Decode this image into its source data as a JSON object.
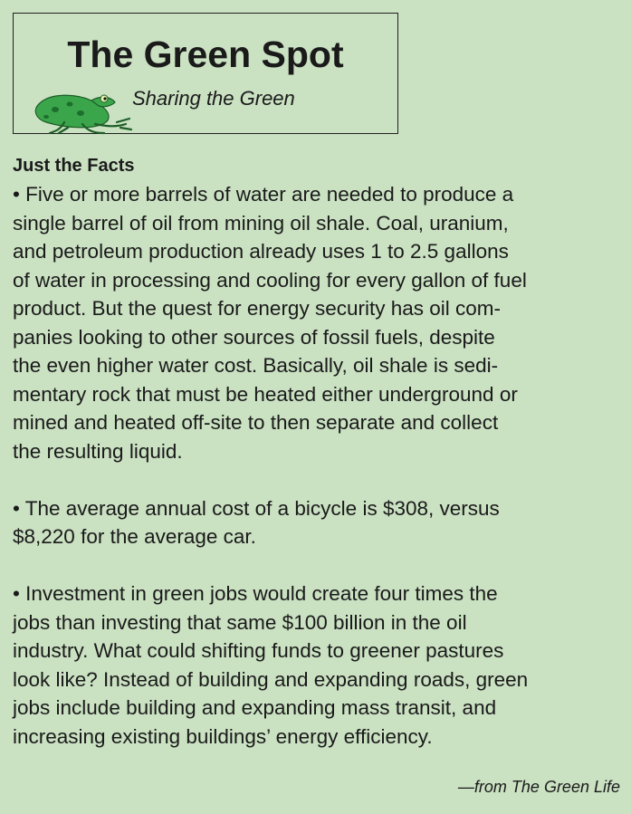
{
  "header": {
    "title": "The Green Spot",
    "subtitle": "Sharing the Green"
  },
  "section": {
    "heading": "Just the Facts",
    "paragraphs": [
      [
        "•  Five or more barrels of water are needed to produce a",
        "single barrel of oil from mining oil shale. Coal, uranium,",
        "and petroleum production already uses 1 to 2.5 gallons",
        "of water in processing and cooling for every gallon of fuel",
        "product. But the quest for energy security has oil com-",
        "panies looking to other sources of fossil fuels, despite",
        "the even higher water cost. Basically, oil shale is sedi-",
        "mentary rock that must be heated either underground or",
        "mined and heated off-site to then separate and collect",
        "the resulting liquid."
      ],
      [
        "• The average annual cost of a bicycle is $308, versus",
        "$8,220 for the average car."
      ],
      [
        "• Investment in green jobs would create four times the",
        "jobs than investing that same $100 billion in the oil",
        "industry. What could shifting funds to greener pastures",
        "look like? Instead of building and expanding roads, green",
        "jobs include building and expanding mass transit, and",
        "increasing existing buildings’ energy efficiency."
      ]
    ]
  },
  "attribution": "—from The Green Life"
}
